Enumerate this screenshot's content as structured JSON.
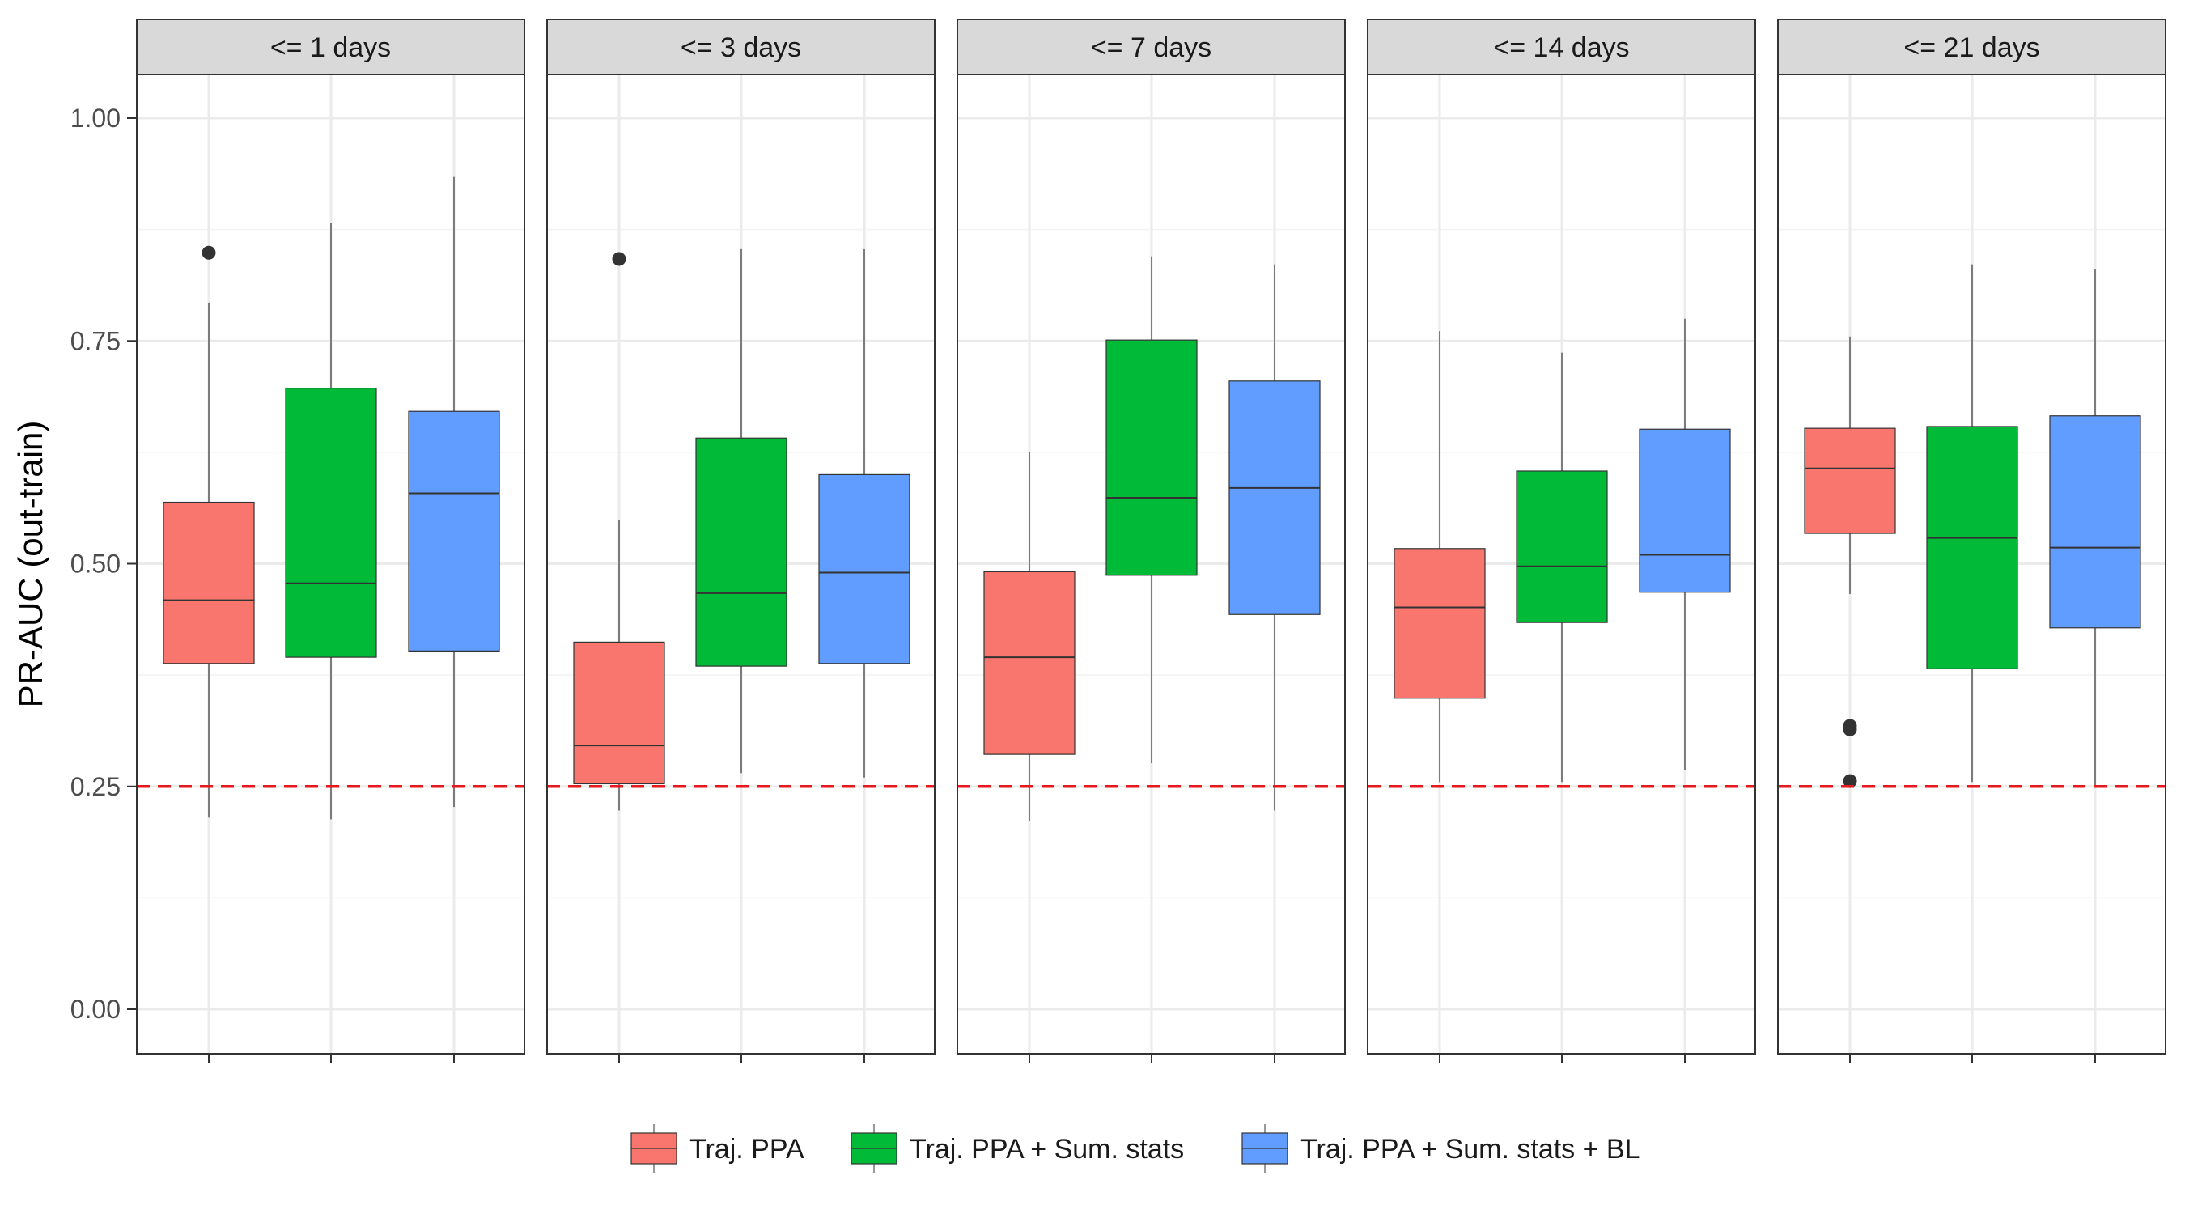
{
  "chart_data": {
    "type": "boxplot",
    "ylabel": "PR-AUC (out-train)",
    "xlabel": "",
    "ylim": [
      -0.048,
      1.1
    ],
    "yticks": [
      "0.00",
      "0.25",
      "0.50",
      "0.75",
      "1.00"
    ],
    "yticks_values": [
      0,
      0.25,
      0.5,
      0.75,
      1.0
    ],
    "grid": true,
    "reference_line": {
      "y": 0.25,
      "color": "#e41a1c",
      "style": "dashed"
    },
    "legend": {
      "position": "bottom"
    },
    "series": [
      {
        "name": "Traj. PPA",
        "color": "#F8766D"
      },
      {
        "name": "Traj. PPA + Sum. stats",
        "color": "#00BA38"
      },
      {
        "name": "Traj. PPA + Sum. stats + BL",
        "color": "#619CFF"
      }
    ],
    "panels": [
      {
        "title": "<= 1 days",
        "boxes": [
          {
            "min": 0.215,
            "q1": 0.388,
            "median": 0.459,
            "q3": 0.569,
            "max": 0.793,
            "outliers": [
              0.849
            ]
          },
          {
            "min": 0.213,
            "q1": 0.395,
            "median": 0.478,
            "q3": 0.697,
            "max": 0.882,
            "outliers": []
          },
          {
            "min": 0.227,
            "q1": 0.402,
            "median": 0.579,
            "q3": 0.671,
            "max": 0.934,
            "outliers": []
          }
        ]
      },
      {
        "title": "<= 3 days",
        "boxes": [
          {
            "min": 0.223,
            "q1": 0.253,
            "median": 0.296,
            "q3": 0.412,
            "max": 0.549,
            "outliers": [
              0.842
            ]
          },
          {
            "min": 0.265,
            "q1": 0.385,
            "median": 0.467,
            "q3": 0.641,
            "max": 0.853,
            "outliers": []
          },
          {
            "min": 0.26,
            "q1": 0.388,
            "median": 0.49,
            "q3": 0.6,
            "max": 0.853,
            "outliers": []
          }
        ]
      },
      {
        "title": "<= 7 days",
        "boxes": [
          {
            "min": 0.211,
            "q1": 0.286,
            "median": 0.395,
            "q3": 0.491,
            "max": 0.625,
            "outliers": []
          },
          {
            "min": 0.276,
            "q1": 0.487,
            "median": 0.574,
            "q3": 0.751,
            "max": 0.845,
            "outliers": []
          },
          {
            "min": 0.223,
            "q1": 0.443,
            "median": 0.585,
            "q3": 0.705,
            "max": 0.836,
            "outliers": []
          }
        ]
      },
      {
        "title": "<= 14 days",
        "boxes": [
          {
            "min": 0.255,
            "q1": 0.349,
            "median": 0.451,
            "q3": 0.517,
            "max": 0.761,
            "outliers": []
          },
          {
            "min": 0.255,
            "q1": 0.434,
            "median": 0.497,
            "q3": 0.604,
            "max": 0.737,
            "outliers": []
          },
          {
            "min": 0.268,
            "q1": 0.468,
            "median": 0.51,
            "q3": 0.651,
            "max": 0.775,
            "outliers": []
          }
        ]
      },
      {
        "title": "<= 21 days",
        "boxes": [
          {
            "min": 0.466,
            "q1": 0.534,
            "median": 0.607,
            "q3": 0.652,
            "max": 0.755,
            "outliers": [
              0.318,
              0.314,
              0.256
            ]
          },
          {
            "min": 0.255,
            "q1": 0.382,
            "median": 0.529,
            "q3": 0.654,
            "max": 0.836,
            "outliers": []
          },
          {
            "min": 0.25,
            "q1": 0.428,
            "median": 0.518,
            "q3": 0.666,
            "max": 0.831,
            "outliers": []
          }
        ]
      }
    ]
  }
}
